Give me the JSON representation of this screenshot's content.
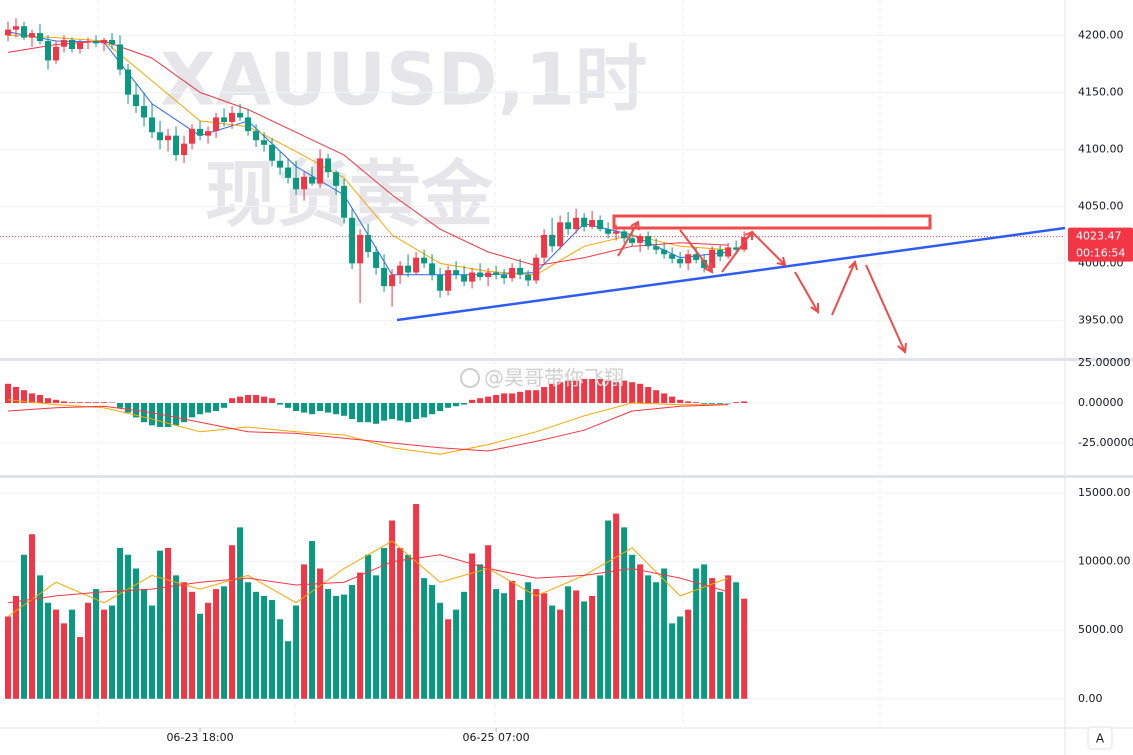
{
  "watermark": "@昊哥带你飞翔",
  "button": "A",
  "chart_data": [
    {
      "type": "candlestick",
      "title": "XAUUSD,1时",
      "subtitle": "现货黄金",
      "up_color": "#f23645",
      "down_color": "#089981",
      "xlim": [
        0,
        133.1
      ],
      "ylim": [
        3917,
        4231
      ],
      "yticks": [
        {
          "value": 3950,
          "label": "3950.00"
        },
        {
          "value": 4000,
          "label": "4000.00"
        },
        {
          "value": 4050,
          "label": "4050.00"
        },
        {
          "value": 4100,
          "label": "4100.00"
        },
        {
          "value": 4150,
          "label": "4150.00"
        },
        {
          "value": 4200,
          "label": "4200.00"
        }
      ],
      "last_price": 4023.47,
      "countdown": "00:16:54",
      "x": [
        1,
        2,
        3,
        4,
        5,
        6,
        7,
        8,
        9,
        10,
        11,
        12,
        13,
        14,
        15,
        16,
        17,
        18,
        19,
        20,
        21,
        22,
        23,
        24,
        25,
        26,
        27,
        28,
        29,
        30,
        31,
        32,
        33,
        34,
        35,
        36,
        37,
        38,
        39,
        40,
        41,
        42,
        43,
        44,
        45,
        46,
        47,
        48,
        49,
        50,
        51,
        52,
        53,
        54,
        55,
        56,
        57,
        58,
        59,
        60,
        61,
        62,
        63,
        64,
        65,
        66,
        67,
        68,
        69,
        70,
        71,
        72,
        73,
        74,
        75,
        76,
        77,
        78,
        79,
        80,
        81,
        82,
        83,
        84,
        85,
        86,
        87,
        88,
        89,
        90,
        91,
        92,
        93
      ],
      "ohlc": [
        [
          4200,
          4212,
          4195,
          4205
        ],
        [
          4205,
          4215,
          4198,
          4208
        ],
        [
          4208,
          4212,
          4196,
          4198
        ],
        [
          4198,
          4205,
          4190,
          4202
        ],
        [
          4202,
          4210,
          4192,
          4195
        ],
        [
          4195,
          4200,
          4170,
          4178
        ],
        [
          4178,
          4195,
          4175,
          4190
        ],
        [
          4190,
          4200,
          4185,
          4196
        ],
        [
          4196,
          4198,
          4185,
          4188
        ],
        [
          4188,
          4196,
          4184,
          4194
        ],
        [
          4194,
          4198,
          4188,
          4195
        ],
        [
          4195,
          4200,
          4190,
          4193
        ],
        [
          4193,
          4198,
          4186,
          4196
        ],
        [
          4196,
          4202,
          4188,
          4192
        ],
        [
          4192,
          4200,
          4165,
          4170
        ],
        [
          4170,
          4175,
          4140,
          4148
        ],
        [
          4148,
          4158,
          4132,
          4138
        ],
        [
          4138,
          4150,
          4120,
          4128
        ],
        [
          4128,
          4140,
          4110,
          4115
        ],
        [
          4115,
          4125,
          4100,
          4108
        ],
        [
          4108,
          4118,
          4098,
          4112
        ],
        [
          4112,
          4120,
          4090,
          4095
        ],
        [
          4095,
          4112,
          4088,
          4105
        ],
        [
          4105,
          4122,
          4100,
          4118
        ],
        [
          4118,
          4125,
          4108,
          4112
        ],
        [
          4112,
          4120,
          4105,
          4116
        ],
        [
          4116,
          4132,
          4110,
          4128
        ],
        [
          4128,
          4136,
          4120,
          4124
        ],
        [
          4124,
          4138,
          4118,
          4132
        ],
        [
          4132,
          4140,
          4125,
          4128
        ],
        [
          4128,
          4135,
          4112,
          4116
        ],
        [
          4116,
          4122,
          4102,
          4108
        ],
        [
          4108,
          4115,
          4098,
          4104
        ],
        [
          4104,
          4110,
          4085,
          4090
        ],
        [
          4090,
          4098,
          4078,
          4084
        ],
        [
          4084,
          4092,
          4070,
          4075
        ],
        [
          4075,
          4090,
          4060,
          4065
        ],
        [
          4065,
          4080,
          4055,
          4076
        ],
        [
          4076,
          4085,
          4068,
          4070
        ],
        [
          4070,
          4100,
          4066,
          4092
        ],
        [
          4092,
          4096,
          4075,
          4080
        ],
        [
          4080,
          4082,
          4060,
          4068
        ],
        [
          4068,
          4074,
          4035,
          4040
        ],
        [
          4040,
          4048,
          3995,
          4000
        ],
        [
          4000,
          4030,
          3965,
          4025
        ],
        [
          4025,
          4035,
          4005,
          4010
        ],
        [
          4010,
          4015,
          3990,
          3996
        ],
        [
          3996,
          4008,
          3975,
          3980
        ],
        [
          3980,
          3995,
          3962,
          3990
        ],
        [
          3990,
          4002,
          3982,
          3998
        ],
        [
          3998,
          4008,
          3988,
          3992
        ],
        [
          3992,
          4010,
          3990,
          4005
        ],
        [
          4005,
          4012,
          3996,
          4000
        ],
        [
          4000,
          4008,
          3985,
          3990
        ],
        [
          3990,
          3996,
          3970,
          3976
        ],
        [
          3976,
          3998,
          3972,
          3994
        ],
        [
          3994,
          4002,
          3986,
          3990
        ],
        [
          3990,
          3998,
          3980,
          3984
        ],
        [
          3984,
          3996,
          3978,
          3992
        ],
        [
          3992,
          4000,
          3985,
          3988
        ],
        [
          3988,
          3996,
          3980,
          3992
        ],
        [
          3992,
          3998,
          3986,
          3990
        ],
        [
          3990,
          3995,
          3982,
          3987
        ],
        [
          3987,
          4000,
          3984,
          3996
        ],
        [
          3996,
          4004,
          3986,
          3990
        ],
        [
          3990,
          3994,
          3980,
          3985
        ],
        [
          3985,
          4008,
          3982,
          4005
        ],
        [
          4005,
          4030,
          4000,
          4025
        ],
        [
          4025,
          4040,
          4010,
          4015
        ],
        [
          4015,
          4042,
          4012,
          4036
        ],
        [
          4036,
          4045,
          4025,
          4030
        ],
        [
          4030,
          4048,
          4026,
          4040
        ],
        [
          4040,
          4044,
          4028,
          4032
        ],
        [
          4032,
          4046,
          4030,
          4038
        ],
        [
          4038,
          4042,
          4028,
          4030
        ],
        [
          4030,
          4036,
          4022,
          4026
        ],
        [
          4026,
          4034,
          4020,
          4028
        ],
        [
          4028,
          4032,
          4018,
          4022
        ],
        [
          4022,
          4030,
          4015,
          4018
        ],
        [
          4018,
          4026,
          4010,
          4024
        ],
        [
          4024,
          4028,
          4012,
          4015
        ],
        [
          4015,
          4022,
          4008,
          4012
        ],
        [
          4012,
          4018,
          4004,
          4008
        ],
        [
          4008,
          4014,
          4000,
          4004
        ],
        [
          4004,
          4010,
          3996,
          4000
        ],
        [
          4000,
          4012,
          3994,
          4008
        ],
        [
          4008,
          4014,
          4000,
          4003
        ],
        [
          4003,
          4008,
          3992,
          3996
        ],
        [
          3996,
          4015,
          3994,
          4012
        ],
        [
          4012,
          4016,
          4002,
          4006
        ],
        [
          4006,
          4018,
          4004,
          4014
        ],
        [
          4014,
          4020,
          4008,
          4012
        ],
        [
          4012,
          4028,
          4010,
          4023
        ]
      ],
      "line_x": [
        1,
        7,
        13,
        19,
        25,
        31,
        37,
        43,
        49,
        55,
        61,
        67,
        73,
        79,
        85,
        91
      ],
      "lines": [
        {
          "color": "#2962ff",
          "values": [
            4203,
            4195,
            4194,
            4140,
            4112,
            4125,
            4085,
            4060,
            3990,
            3990,
            3990,
            3992,
            4035,
            4025,
            4005,
            4010
          ]
        },
        {
          "color": "#f7a600",
          "values": [
            4200,
            4198,
            4195,
            4160,
            4125,
            4120,
            4098,
            4075,
            4025,
            4000,
            3993,
            3990,
            4015,
            4025,
            4015,
            4012
          ]
        },
        {
          "color": "#f23645",
          "values": [
            4185,
            4192,
            4195,
            4180,
            4150,
            4135,
            4115,
            4095,
            4060,
            4030,
            4010,
            3998,
            4005,
            4015,
            4018,
            4016
          ]
        }
      ]
    },
    {
      "type": "macd",
      "pos_color": "#f23645",
      "neg_color": "#089981",
      "xlim": [
        0,
        133.1
      ],
      "ylim": [
        -45,
        26.25
      ],
      "yticks": [
        {
          "value": 25,
          "label": "25.00000"
        },
        {
          "value": 0,
          "label": "0.00000"
        },
        {
          "value": -25,
          "label": "-25.00000"
        }
      ],
      "x": [
        1,
        2,
        3,
        4,
        5,
        6,
        7,
        8,
        9,
        10,
        11,
        12,
        13,
        14,
        15,
        16,
        17,
        18,
        19,
        20,
        21,
        22,
        23,
        24,
        25,
        26,
        27,
        28,
        29,
        30,
        31,
        32,
        33,
        34,
        35,
        36,
        37,
        38,
        39,
        40,
        41,
        42,
        43,
        44,
        45,
        46,
        47,
        48,
        49,
        50,
        51,
        52,
        53,
        54,
        55,
        56,
        57,
        58,
        59,
        60,
        61,
        62,
        63,
        64,
        65,
        66,
        67,
        68,
        69,
        70,
        71,
        72,
        73,
        74,
        75,
        76,
        77,
        78,
        79,
        80,
        81,
        82,
        83,
        84,
        85,
        86,
        87,
        88,
        89,
        90,
        91,
        92,
        93
      ],
      "values": [
        12,
        10,
        8,
        6,
        5,
        3,
        2,
        1,
        0.5,
        0.5,
        0.5,
        0.5,
        0.5,
        0.3,
        -3,
        -6,
        -9,
        -12,
        -14,
        -15,
        -15,
        -14,
        -12,
        -9,
        -7,
        -6,
        -5,
        -3,
        3,
        4,
        5,
        5,
        4,
        3,
        -1,
        -3,
        -5,
        -6,
        -7,
        -5,
        -6,
        -7,
        -8,
        -10,
        -12,
        -12,
        -13,
        -11,
        -10,
        -11,
        -12,
        -10,
        -9,
        -7,
        -5,
        -3,
        -2,
        -1,
        2,
        3,
        4,
        5,
        6,
        6,
        7,
        8,
        8,
        10,
        12,
        13,
        14,
        14,
        15,
        15,
        15,
        14,
        13,
        14,
        13,
        12,
        10,
        8,
        6,
        4,
        2,
        1,
        0.5,
        -0.5,
        -0.5,
        -0.5,
        -0.3,
        0.5,
        1
      ],
      "line_x": [
        1,
        7,
        13,
        19,
        25,
        31,
        37,
        43,
        49,
        55,
        61,
        67,
        73,
        79,
        85,
        91
      ],
      "lines": [
        {
          "color": "#f7a600",
          "values": [
            2,
            -1,
            -3,
            -10,
            -18,
            -15,
            -18,
            -20,
            -28,
            -32,
            -26,
            -18,
            -8,
            0,
            -1,
            -1
          ]
        },
        {
          "color": "#f23645",
          "values": [
            -5,
            -3,
            -2,
            -6,
            -12,
            -18,
            -19,
            -22,
            -25,
            -28,
            -30,
            -24,
            -17,
            -5,
            -2,
            -1
          ]
        }
      ]
    },
    {
      "type": "volume",
      "xlim": [
        0,
        133.1
      ],
      "ylim": [
        -2130,
        16100
      ],
      "yticks": [
        {
          "value": 0,
          "label": "0.00"
        },
        {
          "value": 5000,
          "label": "5000.00"
        },
        {
          "value": 10000,
          "label": "10000.00"
        },
        {
          "value": 15000,
          "label": "15000.00"
        }
      ],
      "xticks": [
        {
          "value": 25,
          "label": "06-23 18:00"
        },
        {
          "value": 62,
          "label": "06-25 07:00"
        }
      ],
      "x": [
        1,
        2,
        3,
        4,
        5,
        6,
        7,
        8,
        9,
        10,
        11,
        12,
        13,
        14,
        15,
        16,
        17,
        18,
        19,
        20,
        21,
        22,
        23,
        24,
        25,
        26,
        27,
        28,
        29,
        30,
        31,
        32,
        33,
        34,
        35,
        36,
        37,
        38,
        39,
        40,
        41,
        42,
        43,
        44,
        45,
        46,
        47,
        48,
        49,
        50,
        51,
        52,
        53,
        54,
        55,
        56,
        57,
        58,
        59,
        60,
        61,
        62,
        63,
        64,
        65,
        66,
        67,
        68,
        69,
        70,
        71,
        72,
        73,
        74,
        75,
        76,
        77,
        78,
        79,
        80,
        81,
        82,
        83,
        84,
        85,
        86,
        87,
        88,
        89,
        90,
        91,
        92,
        93
      ],
      "values": [
        6000,
        7500,
        10500,
        12000,
        9000,
        7000,
        6500,
        5500,
        6500,
        4500,
        7000,
        8000,
        6500,
        6800,
        11000,
        10500,
        9500,
        8000,
        6800,
        10800,
        11000,
        9000,
        8500,
        7800,
        6200,
        7000,
        8000,
        8200,
        11200,
        12500,
        8500,
        7800,
        7500,
        7200,
        5800,
        4200,
        6800,
        9800,
        11500,
        9500,
        8000,
        7500,
        7600,
        8300,
        9200,
        10500,
        9000,
        11000,
        13000,
        11000,
        10500,
        14200,
        8800,
        8300,
        7000,
        5800,
        6500,
        7800,
        10600,
        9800,
        11200,
        8000,
        7700,
        8600,
        7200,
        8500,
        8000,
        7700,
        6800,
        6500,
        8200,
        7900,
        7100,
        7500,
        9000,
        13000,
        13500,
        12500,
        10500,
        9800,
        9000,
        8500,
        9500,
        5500,
        6000,
        6500,
        9500,
        9800,
        8800,
        7800,
        9000,
        8500,
        7300
      ],
      "line_x": [
        1,
        7,
        13,
        19,
        25,
        31,
        37,
        43,
        49,
        55,
        61,
        67,
        73,
        79,
        85,
        91
      ],
      "lines": [
        {
          "color": "#f7a600",
          "values": [
            6000,
            8500,
            7000,
            9000,
            8000,
            9000,
            7000,
            9500,
            11500,
            8500,
            9500,
            7500,
            9000,
            11000,
            7500,
            8800
          ]
        },
        {
          "color": "#f23645",
          "values": [
            7000,
            7500,
            7800,
            8000,
            8500,
            8800,
            8300,
            8500,
            10000,
            10500,
            9500,
            8800,
            9000,
            9500,
            8800,
            7800
          ]
        }
      ]
    }
  ]
}
